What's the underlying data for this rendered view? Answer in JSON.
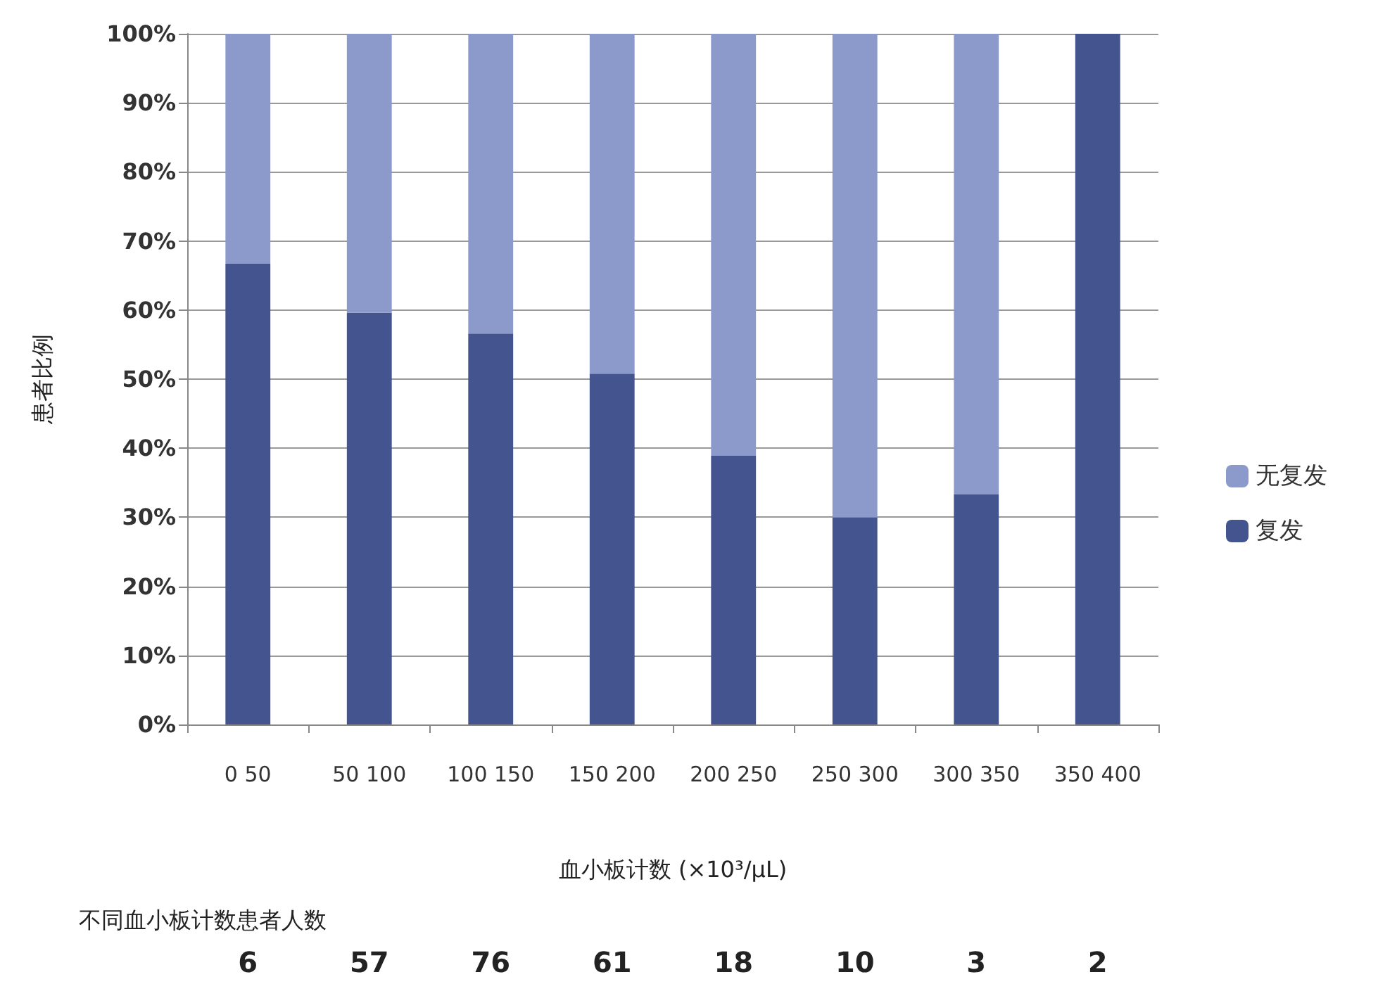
{
  "chart_data": {
    "type": "bar",
    "stacked": true,
    "xlabel": "血小板计数 (×10³/μL)",
    "ylabel": "患者比例",
    "categories": [
      "0 50",
      "50 100",
      "100 150",
      "150 200",
      "200 250",
      "250 300",
      "300 350",
      "350 400"
    ],
    "series": [
      {
        "name": "复发",
        "color": "#44548f",
        "values": [
          66.7,
          59.6,
          56.6,
          50.8,
          38.9,
          30,
          33.3,
          100
        ]
      },
      {
        "name": "无复发",
        "color": "#8b9acb",
        "values": [
          33.3,
          40.4,
          43.4,
          49.2,
          61.1,
          70,
          66.7,
          0
        ]
      }
    ],
    "ylim": [
      0,
      100
    ],
    "yticks": [
      {
        "value": 0,
        "label": "0%"
      },
      {
        "value": 10,
        "label": "10%"
      },
      {
        "value": 20,
        "label": "20%"
      },
      {
        "value": 30,
        "label": "30%"
      },
      {
        "value": 40,
        "label": "40%"
      },
      {
        "value": 50,
        "label": "50%"
      },
      {
        "value": 60,
        "label": "60%"
      },
      {
        "value": 70,
        "label": "70%"
      },
      {
        "value": 80,
        "label": "80%"
      },
      {
        "value": 90,
        "label": "90%"
      },
      {
        "value": 100,
        "label": "100%"
      }
    ],
    "grid": "y",
    "legend": "right",
    "annotations": [
      "不同血小板计数患者人数",
      "6",
      "57",
      "76",
      "61",
      "18",
      "10",
      "3",
      "2"
    ]
  }
}
